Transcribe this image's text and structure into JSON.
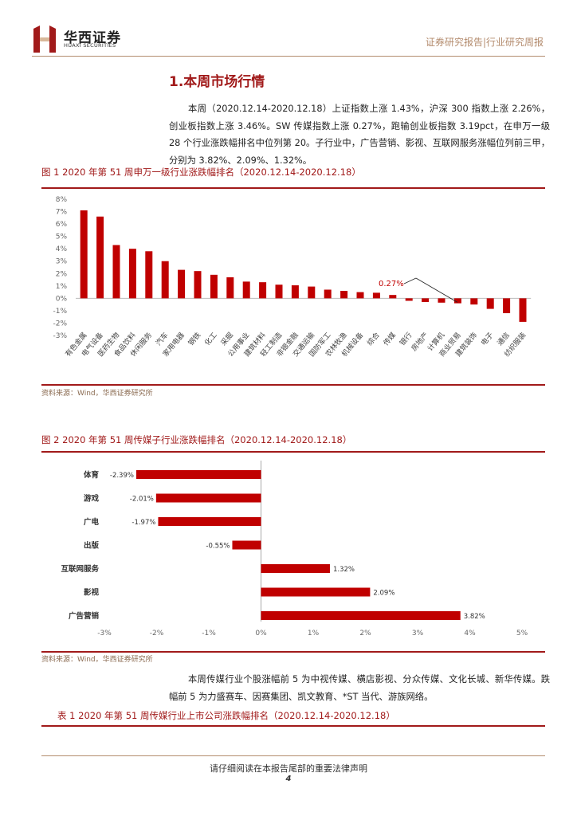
{
  "header": {
    "logo_cn": "华西证券",
    "logo_en": "HUAXI SECURITIES",
    "right_text": "证券研究报告|行业研究周报"
  },
  "section_title": "1.本周市场行情",
  "intro_paragraph": "本周（2020.12.14-2020.12.18）上证指数上涨 1.43%，沪深 300 指数上涨 2.26%，创业板指数上涨 3.46%。SW 传媒指数上涨 0.27%，跑输创业板指数 3.19pct，在申万一级 28 个行业涨跌幅排名中位列第 20。子行业中，广告营销、影视、互联网服务涨幅位列前三甲，分别为 3.82%、2.09%、1.32%。",
  "figure1": {
    "title": "图 1 2020 年第 51 周申万一级行业涨跌幅排名（2020.12.14-2020.12.18）",
    "source": "资料来源：Wind，华西证券研究所"
  },
  "figure2": {
    "title": "图 2 2020 年第 51 周传媒子行业涨跌幅排名（2020.12.14-2020.12.18）",
    "source": "资料来源：Wind，华西证券研究所"
  },
  "paragraph2": "本周传媒行业个股涨幅前 5 为中视传媒、横店影视、分众传媒、文化长城、新华传媒。跌幅前 5 为力盛赛车、因赛集团、凯文教育、*ST 当代、游族网络。",
  "table1_title": "表 1 2020 年第 51 周传媒行业上市公司涨跌幅排名（2020.12.14-2020.12.18）",
  "footer": {
    "notice": "请仔细阅读在本报告尾部的重要法律声明",
    "page": "4"
  },
  "colors": {
    "bar": "#c00000",
    "accent": "#a11a1a",
    "gold": "#b38b6d"
  },
  "chart_data": [
    {
      "type": "bar",
      "categories": [
        "有色金属",
        "电气设备",
        "医药生物",
        "食品饮料",
        "休闲服务",
        "汽车",
        "家用电器",
        "钢铁",
        "化工",
        "采掘",
        "公用事业",
        "建筑材料",
        "轻工制造",
        "非银金融",
        "交通运输",
        "国防军工",
        "农林牧渔",
        "机械设备",
        "综合",
        "传媒",
        "银行",
        "房地产",
        "计算机",
        "商业贸易",
        "建筑装饰",
        "电子",
        "通信",
        "纺织服装"
      ],
      "values": [
        7.1,
        6.6,
        4.3,
        4.0,
        3.8,
        3.0,
        2.3,
        2.2,
        1.9,
        1.7,
        1.35,
        1.3,
        1.1,
        1.05,
        0.95,
        0.7,
        0.6,
        0.5,
        0.45,
        0.27,
        -0.2,
        -0.3,
        -0.35,
        -0.4,
        -0.5,
        -0.85,
        -1.2,
        -1.9
      ],
      "yticks": [
        "8%",
        "7%",
        "6%",
        "5%",
        "4%",
        "3%",
        "2%",
        "1%",
        "0%",
        "-1%",
        "-2%",
        "-3%"
      ],
      "ylim": [
        -3,
        8
      ],
      "annotation": "0.27%"
    },
    {
      "type": "bar",
      "orientation": "horizontal",
      "categories": [
        "体育",
        "游戏",
        "广电",
        "出版",
        "互联网服务",
        "影视",
        "广告营销"
      ],
      "values": [
        -2.39,
        -2.01,
        -1.97,
        -0.55,
        1.32,
        2.09,
        3.82
      ],
      "value_labels": [
        "-2.39%",
        "-2.01%",
        "-1.97%",
        "-0.55%",
        "1.32%",
        "2.09%",
        "3.82%"
      ],
      "xticks": [
        "-3%",
        "-2%",
        "-1%",
        "0%",
        "1%",
        "2%",
        "3%",
        "4%",
        "5%"
      ],
      "xlim": [
        -3,
        5
      ]
    }
  ]
}
